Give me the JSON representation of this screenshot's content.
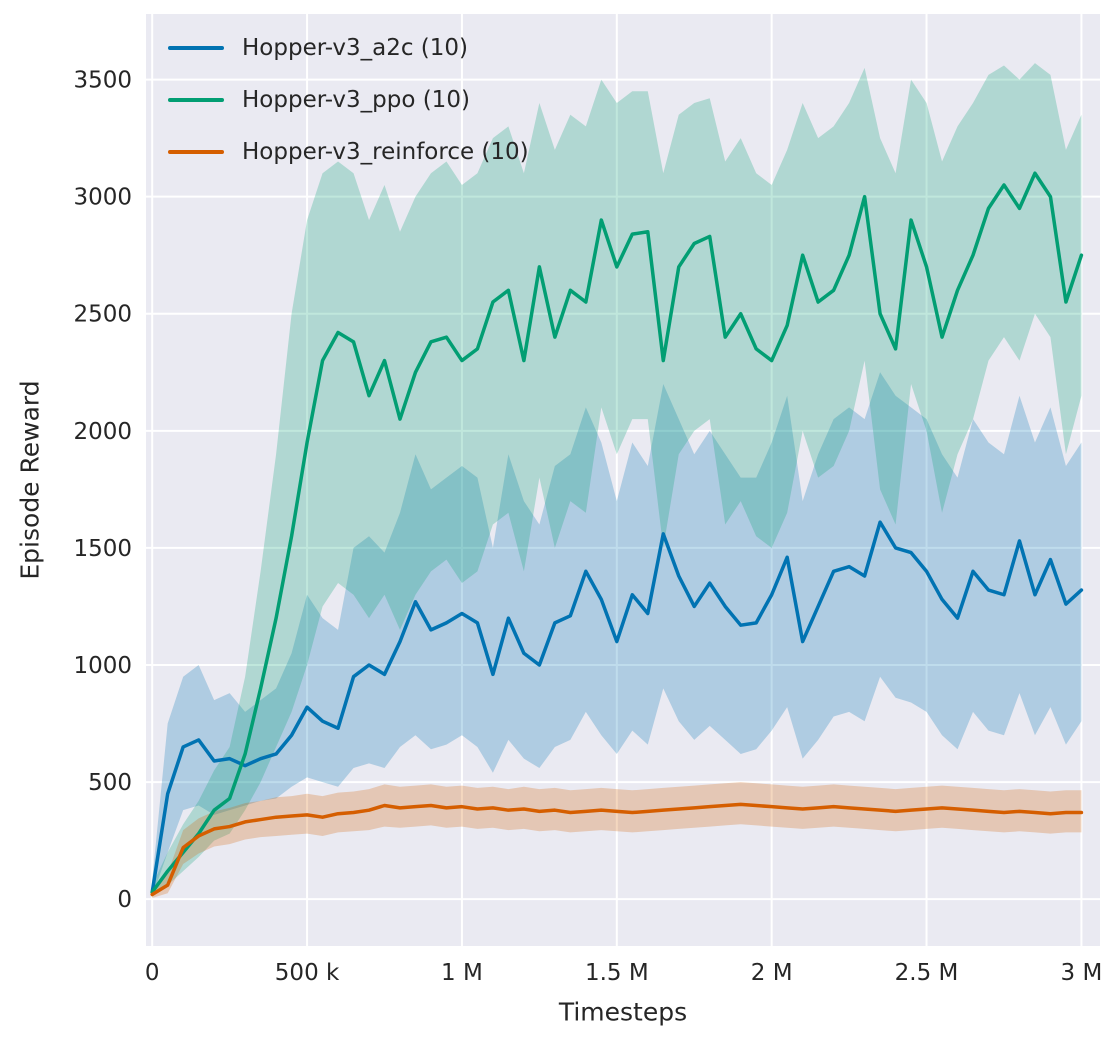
{
  "chart_data": {
    "type": "line",
    "title": "",
    "xlabel": "Timesteps",
    "ylabel": "Episode Reward",
    "legend_position": "upper left",
    "grid": true,
    "background_color": "#eaeaf2",
    "grid_color": "#ffffff",
    "text_color": "#262626",
    "band_opacity": 0.25,
    "xlim": [
      -20000,
      3060000
    ],
    "ylim": [
      -200,
      3780
    ],
    "xticks": {
      "values": [
        0,
        500000,
        1000000,
        1500000,
        2000000,
        2500000,
        3000000
      ],
      "labels": [
        "0",
        "500 k",
        "1 M",
        "1.5 M",
        "2 M",
        "2.5 M",
        "3 M"
      ]
    },
    "yticks": {
      "values": [
        0,
        500,
        1000,
        1500,
        2000,
        2500,
        3000,
        3500
      ],
      "labels": [
        "0",
        "500",
        "1000",
        "1500",
        "2000",
        "2500",
        "3000",
        "3500"
      ]
    },
    "x": [
      0,
      50000,
      100000,
      150000,
      200000,
      250000,
      300000,
      350000,
      400000,
      450000,
      500000,
      550000,
      600000,
      650000,
      700000,
      750000,
      800000,
      850000,
      900000,
      950000,
      1000000,
      1050000,
      1100000,
      1150000,
      1200000,
      1250000,
      1300000,
      1350000,
      1400000,
      1450000,
      1500000,
      1550000,
      1600000,
      1650000,
      1700000,
      1750000,
      1800000,
      1850000,
      1900000,
      1950000,
      2000000,
      2050000,
      2100000,
      2150000,
      2200000,
      2250000,
      2300000,
      2350000,
      2400000,
      2450000,
      2500000,
      2550000,
      2600000,
      2650000,
      2700000,
      2750000,
      2800000,
      2850000,
      2900000,
      2950000,
      3000000
    ],
    "series": [
      {
        "name": "Hopper-v3_a2c (10)",
        "color": "#0173b2",
        "mean": [
          30,
          450,
          650,
          680,
          590,
          600,
          570,
          600,
          620,
          700,
          820,
          760,
          730,
          950,
          1000,
          960,
          1100,
          1270,
          1150,
          1180,
          1220,
          1180,
          960,
          1200,
          1050,
          1000,
          1180,
          1210,
          1400,
          1280,
          1100,
          1300,
          1220,
          1560,
          1380,
          1250,
          1350,
          1250,
          1170,
          1180,
          1300,
          1460,
          1100,
          1250,
          1400,
          1420,
          1380,
          1610,
          1500,
          1480,
          1400,
          1280,
          1200,
          1400,
          1320,
          1300,
          1530,
          1300,
          1450,
          1260,
          1320
        ],
        "lo": [
          10,
          200,
          380,
          400,
          360,
          380,
          400,
          420,
          430,
          480,
          520,
          500,
          480,
          560,
          580,
          560,
          650,
          700,
          640,
          660,
          700,
          650,
          540,
          680,
          600,
          560,
          650,
          680,
          800,
          700,
          620,
          720,
          660,
          900,
          760,
          680,
          740,
          680,
          620,
          640,
          720,
          820,
          600,
          680,
          780,
          800,
          760,
          950,
          860,
          840,
          800,
          700,
          640,
          800,
          720,
          700,
          880,
          700,
          820,
          660,
          760
        ],
        "hi": [
          80,
          750,
          950,
          1000,
          850,
          880,
          800,
          850,
          900,
          1050,
          1300,
          1200,
          1150,
          1500,
          1550,
          1480,
          1650,
          1900,
          1750,
          1800,
          1850,
          1800,
          1500,
          1900,
          1700,
          1600,
          1850,
          1900,
          2100,
          1950,
          1700,
          1950,
          1850,
          2200,
          2050,
          1900,
          2000,
          1900,
          1800,
          1800,
          1950,
          2150,
          1700,
          1900,
          2050,
          2100,
          2050,
          2250,
          2150,
          2100,
          2050,
          1900,
          1800,
          2050,
          1950,
          1900,
          2150,
          1950,
          2100,
          1850,
          1950
        ]
      },
      {
        "name": "Hopper-v3_ppo (10)",
        "color": "#029e73",
        "mean": [
          30,
          120,
          200,
          280,
          380,
          430,
          620,
          900,
          1200,
          1550,
          1950,
          2300,
          2420,
          2380,
          2150,
          2300,
          2050,
          2250,
          2380,
          2400,
          2300,
          2350,
          2550,
          2600,
          2300,
          2700,
          2400,
          2600,
          2550,
          2900,
          2700,
          2840,
          2850,
          2300,
          2700,
          2800,
          2830,
          2400,
          2500,
          2350,
          2300,
          2450,
          2750,
          2550,
          2600,
          2750,
          3000,
          2500,
          2350,
          2900,
          2700,
          2400,
          2600,
          2750,
          2950,
          3050,
          2950,
          3100,
          3000,
          2550,
          2750
        ],
        "lo": [
          10,
          60,
          120,
          180,
          250,
          280,
          380,
          500,
          650,
          800,
          1000,
          1250,
          1350,
          1300,
          1200,
          1300,
          1150,
          1300,
          1400,
          1450,
          1350,
          1400,
          1600,
          1650,
          1400,
          1800,
          1500,
          1700,
          1650,
          2100,
          1900,
          2050,
          2050,
          1500,
          1900,
          2000,
          2050,
          1600,
          1700,
          1550,
          1500,
          1650,
          2000,
          1800,
          1850,
          2000,
          2300,
          1750,
          1600,
          2200,
          2000,
          1650,
          1900,
          2050,
          2300,
          2400,
          2300,
          2500,
          2400,
          1900,
          2150
        ],
        "hi": [
          60,
          200,
          320,
          420,
          550,
          650,
          950,
          1400,
          1900,
          2500,
          2900,
          3100,
          3150,
          3100,
          2900,
          3050,
          2850,
          3000,
          3100,
          3150,
          3050,
          3100,
          3250,
          3300,
          3100,
          3400,
          3200,
          3350,
          3300,
          3500,
          3400,
          3450,
          3450,
          3100,
          3350,
          3400,
          3420,
          3150,
          3250,
          3100,
          3050,
          3200,
          3400,
          3250,
          3300,
          3400,
          3550,
          3250,
          3100,
          3500,
          3400,
          3150,
          3300,
          3400,
          3520,
          3560,
          3500,
          3570,
          3520,
          3200,
          3350
        ]
      },
      {
        "name": "Hopper-v3_reinforce (10)",
        "color": "#d55e00",
        "mean": [
          20,
          60,
          220,
          270,
          300,
          310,
          330,
          340,
          350,
          355,
          360,
          350,
          365,
          370,
          380,
          400,
          390,
          395,
          400,
          390,
          395,
          385,
          390,
          380,
          385,
          375,
          380,
          370,
          375,
          380,
          375,
          370,
          375,
          380,
          385,
          390,
          395,
          400,
          405,
          400,
          395,
          390,
          385,
          390,
          395,
          390,
          385,
          380,
          375,
          380,
          385,
          390,
          385,
          380,
          375,
          370,
          375,
          370,
          365,
          370,
          370
        ],
        "lo": [
          5,
          25,
          150,
          195,
          225,
          235,
          255,
          265,
          270,
          275,
          280,
          270,
          285,
          290,
          295,
          310,
          305,
          310,
          315,
          305,
          310,
          300,
          305,
          295,
          300,
          290,
          295,
          285,
          290,
          295,
          290,
          285,
          290,
          295,
          300,
          305,
          310,
          315,
          320,
          315,
          310,
          305,
          300,
          305,
          310,
          305,
          300,
          295,
          290,
          295,
          300,
          305,
          300,
          295,
          290,
          285,
          290,
          285,
          280,
          285,
          285
        ],
        "hi": [
          45,
          110,
          295,
          345,
          375,
          390,
          410,
          420,
          435,
          440,
          450,
          440,
          455,
          460,
          470,
          490,
          480,
          485,
          490,
          480,
          485,
          475,
          480,
          470,
          480,
          470,
          475,
          465,
          470,
          475,
          470,
          465,
          470,
          475,
          480,
          485,
          490,
          495,
          500,
          495,
          490,
          485,
          480,
          485,
          490,
          485,
          480,
          475,
          470,
          475,
          480,
          485,
          480,
          475,
          470,
          465,
          470,
          465,
          460,
          465,
          465
        ]
      }
    ]
  }
}
